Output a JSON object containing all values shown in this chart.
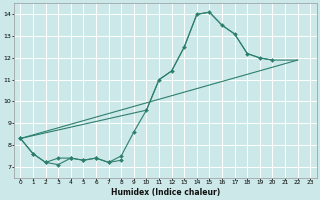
{
  "xlabel": "Humidex (Indice chaleur)",
  "ylabel": "",
  "bg_color": "#cce8e8",
  "grid_color": "#ffffff",
  "line_color": "#2d7f6e",
  "xlim": [
    -0.5,
    23.5
  ],
  "ylim": [
    6.5,
    14.5
  ],
  "xticks": [
    0,
    1,
    2,
    3,
    4,
    5,
    6,
    7,
    8,
    9,
    10,
    11,
    12,
    13,
    14,
    15,
    16,
    17,
    18,
    19,
    20,
    21,
    22,
    23
  ],
  "yticks": [
    7,
    8,
    9,
    10,
    11,
    12,
    13,
    14
  ],
  "line1_y": [
    8.3,
    7.6,
    7.2,
    7.1,
    7.4,
    7.3,
    7.4,
    7.2,
    7.3,
    null,
    null,
    null,
    null,
    null,
    null,
    null,
    null,
    null,
    null,
    null,
    null,
    null,
    null,
    null
  ],
  "line2_y": [
    8.3,
    7.6,
    7.2,
    7.4,
    7.4,
    7.3,
    7.4,
    7.2,
    7.5,
    8.6,
    9.6,
    11.0,
    11.4,
    12.5,
    14.0,
    14.1,
    13.5,
    13.1,
    12.2,
    12.0,
    11.9,
    null,
    null,
    null
  ],
  "line3_x": [
    0,
    22
  ],
  "line3_y": [
    8.3,
    11.9
  ],
  "line4_x": [
    0,
    10,
    11,
    12,
    13,
    14,
    15,
    16,
    17,
    18,
    19,
    20,
    21,
    22
  ],
  "line4_y": [
    8.3,
    9.6,
    11.0,
    11.4,
    12.5,
    14.0,
    14.1,
    13.5,
    13.1,
    12.2,
    12.0,
    11.9,
    11.9,
    11.9
  ]
}
